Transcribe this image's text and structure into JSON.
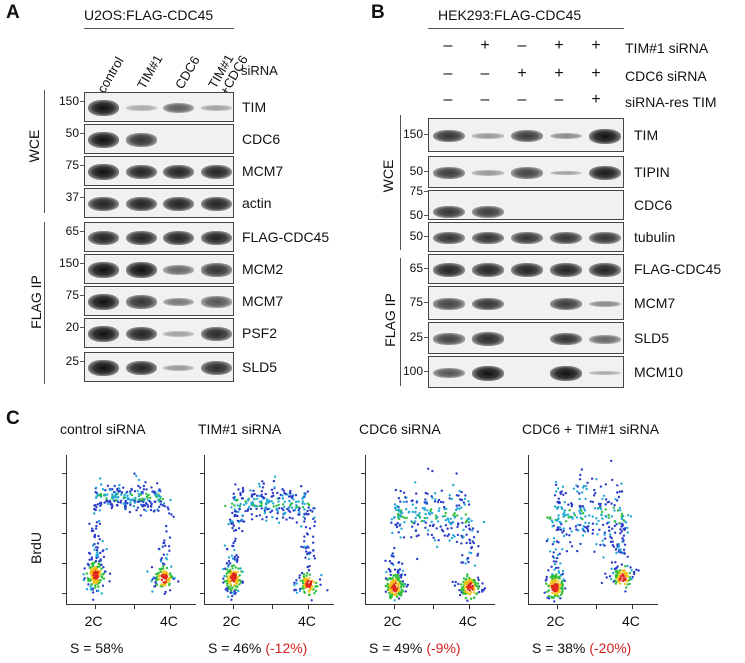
{
  "panels": {
    "a": {
      "letter": "A",
      "cell_line": "U2OS:FLAG-CDC45",
      "lanes": [
        "control",
        "TIM#1",
        "CDC6",
        "TIM#1\n+CDC6"
      ],
      "lane_row_label": "siRNA",
      "section_wce": "WCE",
      "section_ip": "FLAG IP",
      "blots": [
        {
          "label": "TIM",
          "mw": [
            "150"
          ],
          "bands": [
            1,
            0.1,
            0.55,
            0.15
          ]
        },
        {
          "label": "CDC6",
          "mw": [
            "50"
          ],
          "bands": [
            1,
            0.8,
            0,
            0
          ]
        },
        {
          "label": "MCM7",
          "mw": [
            "75"
          ],
          "bands": [
            1,
            0.9,
            0.9,
            0.9
          ]
        },
        {
          "label": "actin",
          "mw": [
            "37"
          ],
          "bands": [
            0.9,
            0.9,
            0.9,
            0.9
          ]
        },
        {
          "label": "FLAG-CDC45",
          "mw": [
            "65"
          ],
          "bands": [
            0.9,
            0.9,
            0.9,
            0.9
          ]
        },
        {
          "label": "MCM2",
          "mw": [
            "150"
          ],
          "bands": [
            1,
            1,
            0.5,
            0.8
          ]
        },
        {
          "label": "MCM7",
          "mw": [
            "75"
          ],
          "bands": [
            1,
            0.8,
            0.4,
            0.6
          ]
        },
        {
          "label": "PSF2",
          "mw": [
            "20"
          ],
          "bands": [
            1,
            0.9,
            0.15,
            0.85
          ]
        },
        {
          "label": "SLD5",
          "mw": [
            "25"
          ],
          "bands": [
            1,
            0.9,
            0.2,
            0.85
          ]
        }
      ]
    },
    "b": {
      "letter": "B",
      "cell_line": "HEK293:FLAG-CDC45",
      "treatments": [
        {
          "label": "TIM#1 siRNA",
          "signs": [
            "–",
            "+",
            "–",
            "+",
            "+"
          ]
        },
        {
          "label": "CDC6 siRNA",
          "signs": [
            "–",
            "–",
            "+",
            "+",
            "+"
          ]
        },
        {
          "label": "siRNA-res TIM",
          "signs": [
            "–",
            "–",
            "–",
            "–",
            "+"
          ]
        }
      ],
      "section_wce": "WCE",
      "section_ip": "FLAG IP",
      "blots": [
        {
          "label": "TIM",
          "mw": [
            "150"
          ],
          "bands": [
            0.8,
            0.2,
            0.75,
            0.3,
            1
          ]
        },
        {
          "label": "TIPIN",
          "mw": [
            "50"
          ],
          "bands": [
            0.75,
            0.2,
            0.7,
            0.15,
            0.95
          ]
        },
        {
          "label": "CDC6",
          "mw": [
            "75",
            "50"
          ],
          "bands": [
            0.8,
            0.75,
            0,
            0,
            0
          ]
        },
        {
          "label": "tubulin",
          "mw": [
            "50"
          ],
          "bands": [
            0.8,
            0.8,
            0.8,
            0.8,
            0.8
          ]
        },
        {
          "label": "FLAG-CDC45",
          "mw": [
            "65"
          ],
          "bands": [
            0.9,
            0.9,
            0.9,
            0.9,
            0.9
          ]
        },
        {
          "label": "MCM7",
          "mw": [
            "75"
          ],
          "bands": [
            0.7,
            0.8,
            0,
            0.75,
            0.3
          ]
        },
        {
          "label": "SLD5",
          "mw": [
            "25"
          ],
          "bands": [
            0.7,
            0.85,
            0,
            0.8,
            0.5
          ]
        },
        {
          "label": "MCM10",
          "mw": [
            "100"
          ],
          "bands": [
            0.6,
            1,
            0,
            1,
            0.1
          ]
        }
      ]
    },
    "c": {
      "letter": "C",
      "y_label": "BrdU",
      "plots": [
        {
          "title": "control siRNA",
          "x_ticks": [
            "2C",
            "4C"
          ],
          "s_text": "S = 58%",
          "delta": ""
        },
        {
          "title": "TIM#1 siRNA",
          "x_ticks": [
            "2C",
            "4C"
          ],
          "s_text": "S = 46%",
          "delta": "(-12%)"
        },
        {
          "title": "CDC6 siRNA",
          "x_ticks": [
            "2C",
            "4C"
          ],
          "s_text": "S = 49%",
          "delta": "(-9%)"
        },
        {
          "title": "CDC6 + TIM#1 siRNA",
          "x_ticks": [
            "2C",
            "4C"
          ],
          "s_text": "S = 38%",
          "delta": "(-20%)"
        }
      ]
    }
  }
}
